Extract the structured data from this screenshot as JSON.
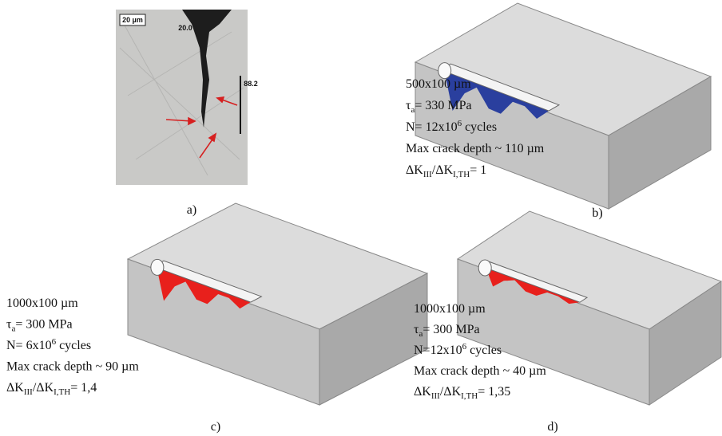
{
  "panels": [
    {
      "label": "a)",
      "scale_bar": "20 µm",
      "measure_1": "20.0",
      "measure_2": "88.2"
    },
    {
      "label": "b)",
      "crack_color": "#2a3f9e",
      "lines": [
        [
          {
            "t": "500x100 µm"
          }
        ],
        [
          {
            "t": "τ"
          },
          {
            "sub": "a"
          },
          {
            "t": "= 330 MPa"
          }
        ],
        [
          {
            "t": " N= 12x10"
          },
          {
            "sup": "6"
          },
          {
            "t": " cycles"
          }
        ],
        [
          {
            "t": "Max crack depth ~ 110 µm"
          }
        ],
        [
          {
            "t": "ΔK"
          },
          {
            "sub": "III"
          },
          {
            "t": "/ΔK"
          },
          {
            "sub": "I,TH"
          },
          {
            "t": "= 1"
          }
        ]
      ]
    },
    {
      "label": "c)",
      "crack_color": "#e8201c",
      "lines": [
        [
          {
            "t": "1000x100 µm"
          }
        ],
        [
          {
            "t": "τ"
          },
          {
            "sub": "a"
          },
          {
            "t": "= 300 MPa"
          }
        ],
        [
          {
            "t": " N= 6x10"
          },
          {
            "sup": "6"
          },
          {
            "t": " cycles"
          }
        ],
        [
          {
            "t": "Max crack depth ~ 90 µm"
          }
        ],
        [
          {
            "t": "ΔK"
          },
          {
            "sub": "III"
          },
          {
            "t": "/ΔK"
          },
          {
            "sub": "I,TH"
          },
          {
            "t": "= 1,4"
          }
        ]
      ]
    },
    {
      "label": "d)",
      "crack_color": "#e8201c",
      "lines": [
        [
          {
            "t": "1000x100 µm"
          }
        ],
        [
          {
            "t": "τ"
          },
          {
            "sub": "a"
          },
          {
            "t": "= 300 MPa"
          }
        ],
        [
          {
            "t": " N=12x10"
          },
          {
            "sup": "6"
          },
          {
            "t": " cycles"
          }
        ],
        [
          {
            "t": "Max crack depth ~ 40 µm"
          }
        ],
        [
          {
            "t": "ΔK"
          },
          {
            "sub": "III"
          },
          {
            "t": "/ΔK"
          },
          {
            "sub": "I,TH"
          },
          {
            "t": "= 1,35"
          }
        ]
      ]
    }
  ]
}
